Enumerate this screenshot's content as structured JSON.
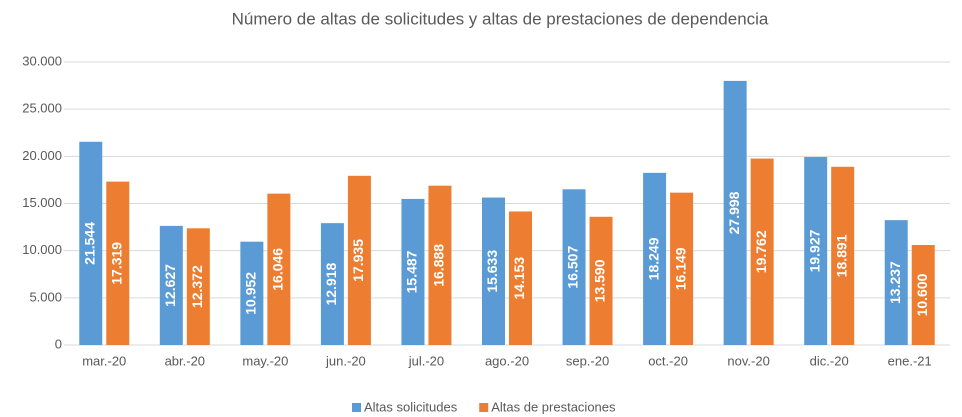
{
  "chart_data": {
    "type": "bar",
    "title": "Número de altas de solicitudes y altas de prestaciones de dependencia",
    "categories": [
      "mar.-20",
      "abr.-20",
      "may.-20",
      "jun.-20",
      "jul.-20",
      "ago.-20",
      "sep.-20",
      "oct.-20",
      "nov.-20",
      "dic.-20",
      "ene.-21"
    ],
    "series": [
      {
        "name": "Altas solicitudes",
        "color": "#5b9bd5",
        "values": [
          21544,
          12627,
          10952,
          12918,
          15487,
          15633,
          16507,
          18249,
          27998,
          19927,
          13237
        ],
        "value_labels": [
          "21.544",
          "12.627",
          "10.952",
          "12.918",
          "15.487",
          "15.633",
          "16.507",
          "18.249",
          "27.998",
          "19.927",
          "13.237"
        ]
      },
      {
        "name": "Altas de prestaciones",
        "color": "#ed7d31",
        "values": [
          17319,
          12372,
          16046,
          17935,
          16888,
          14153,
          13590,
          16149,
          19762,
          18891,
          10600
        ],
        "value_labels": [
          "17.319",
          "12.372",
          "16.046",
          "17.935",
          "16.888",
          "14.153",
          "13.590",
          "16.149",
          "19.762",
          "18.891",
          "10.600"
        ]
      }
    ],
    "ylim": [
      0,
      30000
    ],
    "yticks": [
      0,
      {
        "value": 5000,
        "label": "5.000"
      },
      {
        "value": 10000,
        "label": "10.000"
      },
      {
        "value": 15000,
        "label": "15.000"
      },
      {
        "value": 20000,
        "label": "20.000"
      },
      {
        "value": 25000,
        "label": "25.000"
      },
      {
        "value": 30000,
        "label": "30.000"
      }
    ],
    "grid": true,
    "legend": "bottom"
  }
}
